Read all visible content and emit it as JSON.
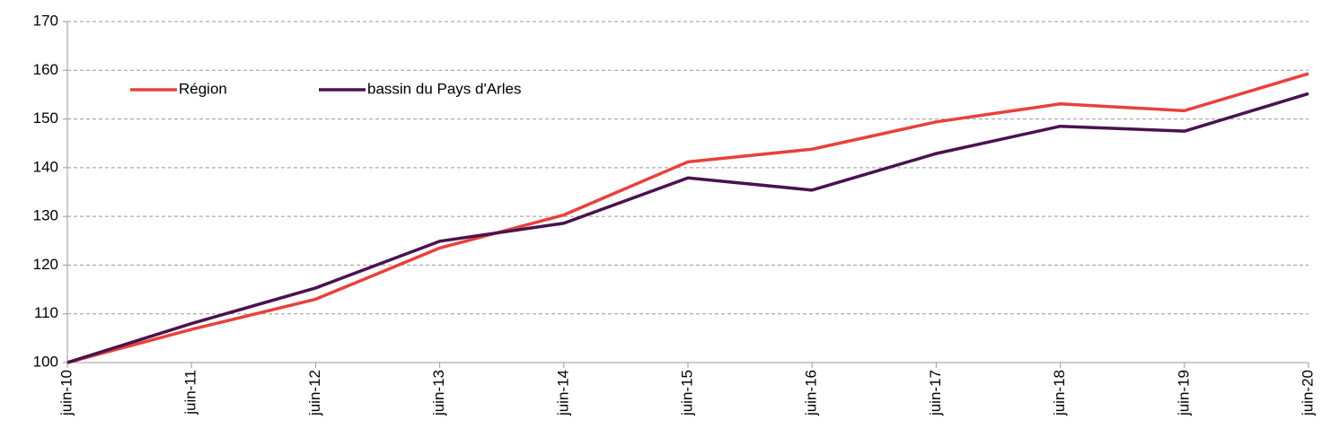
{
  "chart_data": {
    "type": "line",
    "categories": [
      "juin-10",
      "juin-11",
      "juin-12",
      "juin-13",
      "juin-14",
      "juin-15",
      "juin-16",
      "juin-17",
      "juin-18",
      "juin-19",
      "juin-20"
    ],
    "series": [
      {
        "name": "Région",
        "color": "#e8413c",
        "values": [
          100,
          106.8,
          113,
          123.5,
          130.3,
          141.2,
          143.8,
          149.4,
          153.1,
          151.7,
          159.3
        ]
      },
      {
        "name": "bassin du Pays d'Arles",
        "color": "#4a1250",
        "values": [
          100,
          108,
          115.3,
          124.9,
          128.6,
          137.9,
          135.4,
          142.9,
          148.5,
          147.5,
          155.2
        ]
      }
    ],
    "ylim": [
      100,
      170
    ],
    "yticks": [
      100,
      110,
      120,
      130,
      140,
      150,
      160,
      170
    ],
    "grid": true,
    "legend": "top-left"
  }
}
